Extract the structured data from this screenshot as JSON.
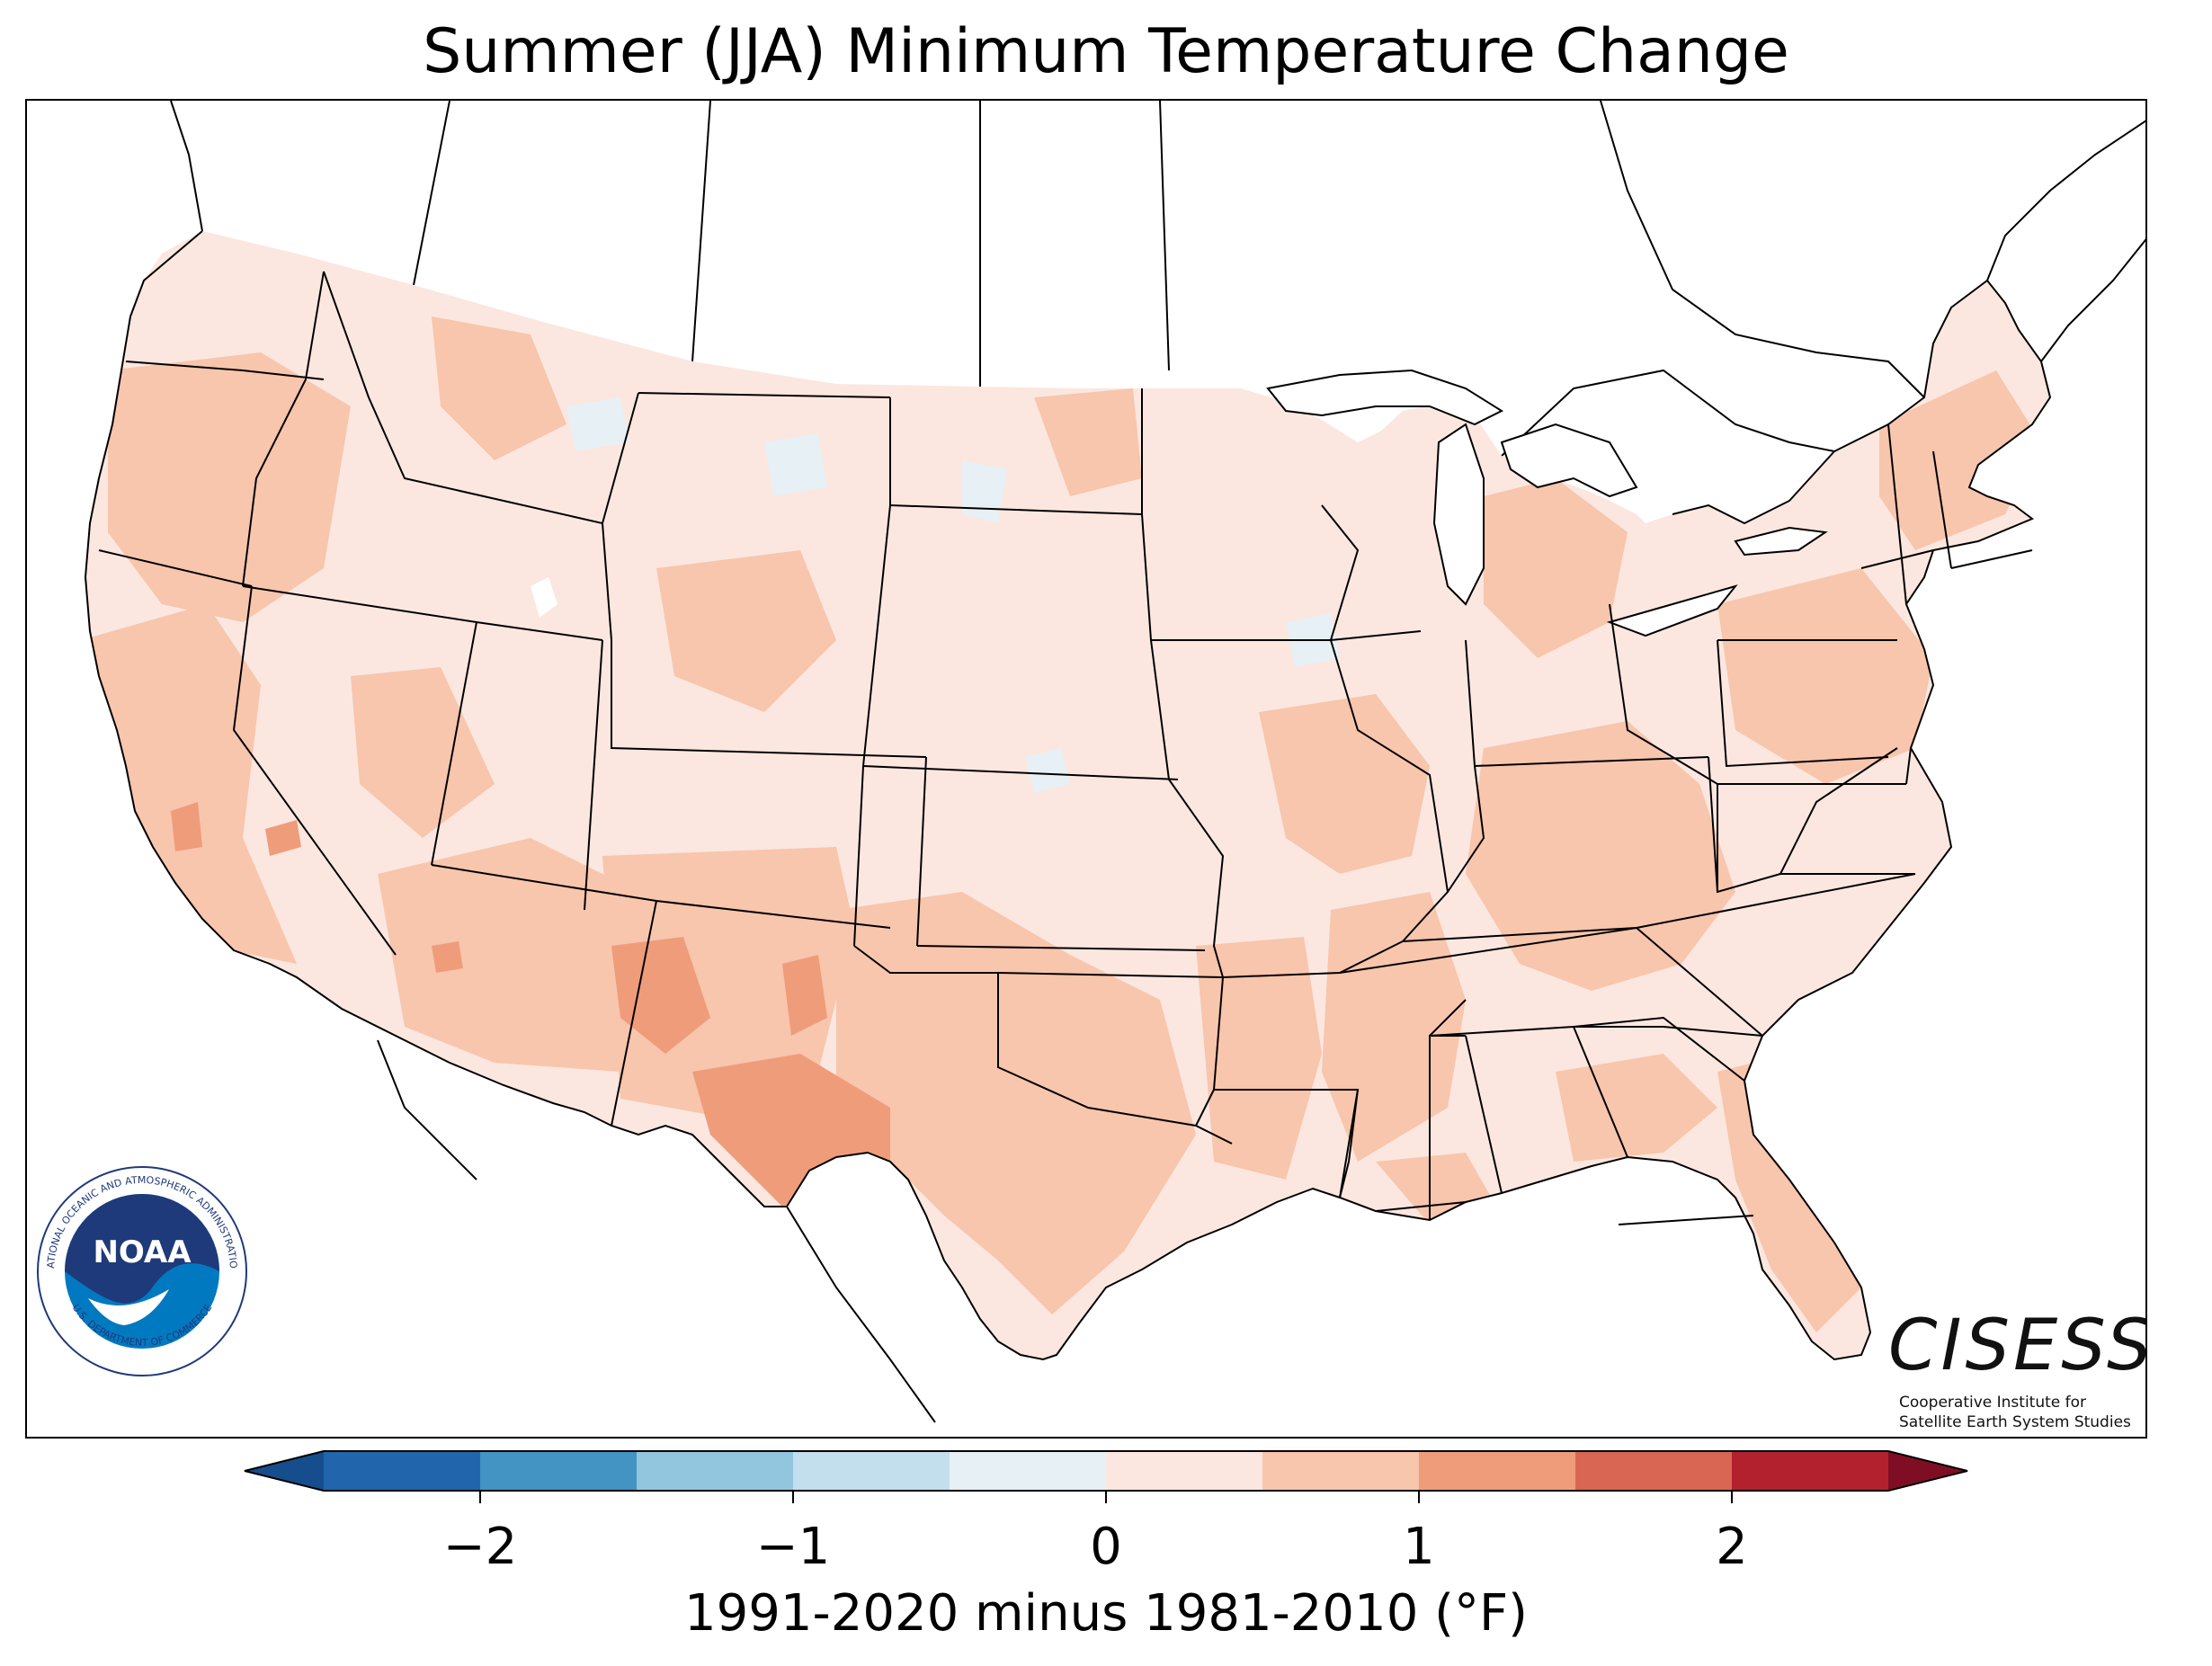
{
  "map": {
    "title": "Summer (JJA) Minimum Temperature Change",
    "region": "contiguous-united-states",
    "colorbar": {
      "label": "1991-2020 minus 1981-2010 (°F)",
      "min": -2.5,
      "max": 2.5,
      "step": 0.5,
      "extend": "both",
      "ticks": [
        {
          "value": -2,
          "label": "−2"
        },
        {
          "value": -1,
          "label": "−1"
        },
        {
          "value": 0,
          "label": "0"
        },
        {
          "value": 1,
          "label": "1"
        },
        {
          "value": 2,
          "label": "2"
        }
      ],
      "bins": [
        {
          "from": -2.5,
          "to": -2.0,
          "color": "#2166ac"
        },
        {
          "from": -2.0,
          "to": -1.5,
          "color": "#4393c3"
        },
        {
          "from": -1.5,
          "to": -1.0,
          "color": "#92c5de"
        },
        {
          "from": -1.0,
          "to": -0.5,
          "color": "#c3dfed"
        },
        {
          "from": -0.5,
          "to": 0.0,
          "color": "#e7f0f4"
        },
        {
          "from": 0.0,
          "to": 0.5,
          "color": "#fbe7df"
        },
        {
          "from": 0.5,
          "to": 1.0,
          "color": "#f8c5ad"
        },
        {
          "from": 1.0,
          "to": 1.5,
          "color": "#ef9c7b"
        },
        {
          "from": 1.5,
          "to": 2.0,
          "color": "#d96652"
        },
        {
          "from": 2.0,
          "to": 2.5,
          "color": "#b3212e"
        }
      ],
      "extend_low_color": "#164d8c",
      "extend_high_color": "#7f0e24"
    },
    "colors": {
      "base_fill": "#fbe7df",
      "warm_fill": "#f8c5ad",
      "warmer_fill": "#ef9c7b",
      "cool_fill": "#e7f0f4",
      "border": "#000000",
      "water": "#ffffff"
    }
  },
  "logos": {
    "noaa": {
      "name": "NOAA",
      "ring_text": "NATIONAL OCEANIC AND ATMOSPHERIC ADMINISTRATION",
      "bottom_text": "U.S. DEPARTMENT OF COMMERCE"
    },
    "cisess": {
      "name": "CISESS",
      "subtitle_line1": "Cooperative Institute for",
      "subtitle_line2": "Satellite Earth System Studies"
    }
  }
}
